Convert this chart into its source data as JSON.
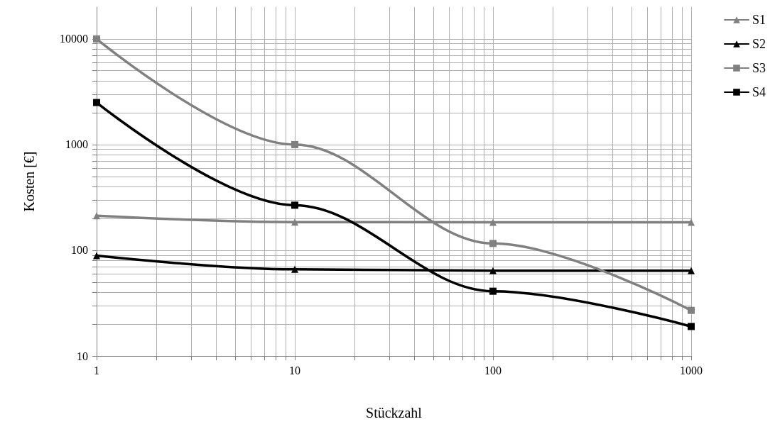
{
  "chart_data": {
    "type": "line",
    "xlabel": "Stückzahl",
    "ylabel": "Kosten [€]",
    "log": "xy",
    "x": [
      1,
      10,
      100,
      1000
    ],
    "xlim": [
      1,
      1000
    ],
    "ylim": [
      10,
      20000
    ],
    "xticks": [
      1,
      {
        "value": 2,
        "label": null
      },
      {
        "value": 3,
        "label": null
      },
      {
        "value": 4,
        "label": null
      },
      {
        "value": 5,
        "label": null
      },
      {
        "value": 6,
        "label": null
      },
      {
        "value": 7,
        "label": null
      },
      {
        "value": 8,
        "label": null
      },
      {
        "value": 9,
        "label": null
      },
      10,
      {
        "value": 20,
        "label": null
      },
      {
        "value": 30,
        "label": null
      },
      {
        "value": 40,
        "label": null
      },
      {
        "value": 50,
        "label": null
      },
      {
        "value": 60,
        "label": null
      },
      {
        "value": 70,
        "label": null
      },
      {
        "value": 80,
        "label": null
      },
      {
        "value": 90,
        "label": null
      },
      100,
      {
        "value": 200,
        "label": null
      },
      {
        "value": 300,
        "label": null
      },
      {
        "value": 400,
        "label": null
      },
      {
        "value": 500,
        "label": null
      },
      {
        "value": 600,
        "label": null
      },
      {
        "value": 700,
        "label": null
      },
      {
        "value": 800,
        "label": null
      },
      {
        "value": 900,
        "label": null
      },
      1000
    ],
    "yticks": [
      10,
      {
        "value": 20,
        "label": null
      },
      {
        "value": 30,
        "label": null
      },
      {
        "value": 40,
        "label": null
      },
      {
        "value": 50,
        "label": null
      },
      {
        "value": 60,
        "label": null
      },
      {
        "value": 70,
        "label": null
      },
      {
        "value": 80,
        "label": null
      },
      {
        "value": 90,
        "label": null
      },
      100,
      {
        "value": 200,
        "label": null
      },
      {
        "value": 300,
        "label": null
      },
      {
        "value": 400,
        "label": null
      },
      {
        "value": 500,
        "label": null
      },
      {
        "value": 600,
        "label": null
      },
      {
        "value": 700,
        "label": null
      },
      {
        "value": 800,
        "label": null
      },
      {
        "value": 900,
        "label": null
      },
      1000,
      {
        "value": 2000,
        "label": null
      },
      {
        "value": 3000,
        "label": null
      },
      {
        "value": 4000,
        "label": null
      },
      {
        "value": 5000,
        "label": null
      },
      {
        "value": 6000,
        "label": null
      },
      {
        "value": 7000,
        "label": null
      },
      {
        "value": 8000,
        "label": null
      },
      {
        "value": 9000,
        "label": null
      },
      10000
    ],
    "grid": true,
    "legend": "top right",
    "line_style": "solid",
    "series": [
      {
        "name": "S1",
        "color": "#808080",
        "marker": "triangle",
        "values": [
          212,
          185,
          184,
          184
        ]
      },
      {
        "name": "S2",
        "color": "#000000",
        "marker": "triangle",
        "values": [
          89,
          66,
          64,
          64
        ]
      },
      {
        "name": "S3",
        "color": "#808080",
        "marker": "square",
        "values": [
          10000,
          1000,
          116,
          27
        ]
      },
      {
        "name": "S4",
        "color": "#000000",
        "marker": "square",
        "values": [
          2500,
          267,
          41,
          19
        ]
      }
    ]
  }
}
